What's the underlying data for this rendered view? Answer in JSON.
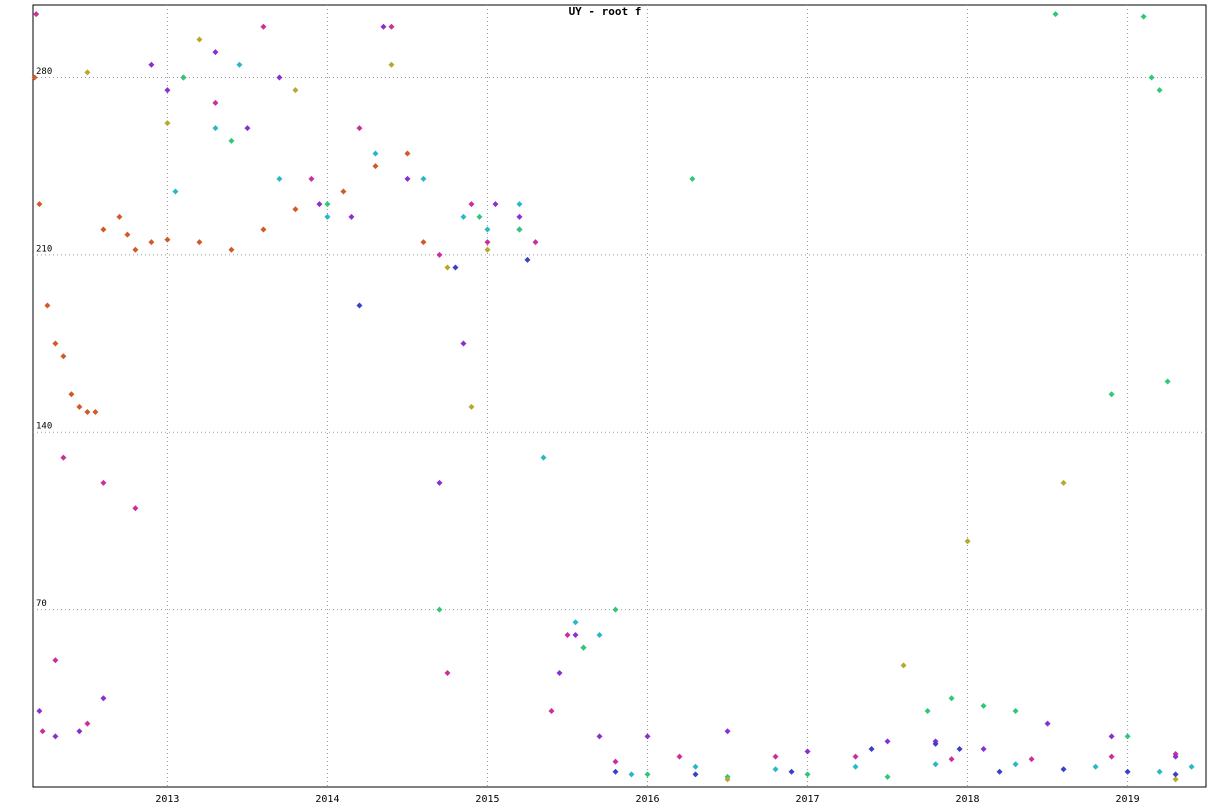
{
  "chart_data": {
    "type": "scatter",
    "title": "UY - root f",
    "xlim": [
      2012.16,
      2019.49
    ],
    "xticks": [
      2013,
      2014,
      2015,
      2016,
      2017,
      2018,
      2019
    ],
    "ylim": [
      0,
      308.6
    ],
    "yticks": [
      70,
      140,
      210,
      280
    ],
    "grid": true,
    "series": [
      {
        "color": "#d05a28",
        "x": [
          2012.17,
          2012.2,
          2012.25,
          2012.3,
          2012.35,
          2012.4,
          2012.45,
          2012.5,
          2012.55,
          2012.6,
          2012.7,
          2012.75,
          2012.8,
          2012.9,
          2013.0,
          2013.2,
          2013.4,
          2013.6,
          2013.8,
          2014.1,
          2014.3,
          2014.5,
          2014.6
        ],
        "values": [
          280,
          230,
          190,
          175,
          170,
          155,
          150,
          148,
          148,
          220,
          225,
          218,
          212,
          215,
          216,
          215,
          212,
          220,
          228,
          235,
          245,
          250,
          215
        ]
      },
      {
        "color": "#c8309a",
        "x": [
          2012.18,
          2012.22,
          2012.3,
          2012.35,
          2012.5,
          2012.6,
          2012.8,
          2013.1,
          2013.3,
          2013.6,
          2013.9,
          2014.2,
          2014.4,
          2014.7,
          2014.75,
          2014.9,
          2015.0,
          2015.2,
          2015.3,
          2015.4,
          2015.5,
          2015.6,
          2015.8,
          2016.2,
          2016.8,
          2017.3,
          2017.9,
          2018.4,
          2018.9,
          2019.3
        ],
        "values": [
          305,
          22,
          50,
          130,
          25,
          120,
          110,
          280,
          270,
          300,
          240,
          260,
          300,
          210,
          45,
          230,
          215,
          220,
          215,
          30,
          60,
          55,
          10,
          12,
          12,
          12,
          11,
          11,
          12,
          13
        ]
      },
      {
        "color": "#8a30d0",
        "x": [
          2012.2,
          2012.3,
          2012.45,
          2012.6,
          2012.9,
          2013.0,
          2013.3,
          2013.5,
          2013.7,
          2013.95,
          2014.15,
          2014.35,
          2014.5,
          2014.7,
          2014.85,
          2015.05,
          2015.2,
          2015.45,
          2015.55,
          2015.7,
          2016.0,
          2016.5,
          2017.0,
          2017.5,
          2017.8,
          2018.1,
          2018.5,
          2018.9,
          2019.3
        ],
        "values": [
          30,
          20,
          22,
          35,
          285,
          275,
          290,
          260,
          280,
          230,
          225,
          300,
          240,
          120,
          175,
          230,
          225,
          45,
          60,
          20,
          20,
          22,
          14,
          18,
          18,
          15,
          25,
          20,
          12
        ]
      },
      {
        "color": "#28b8c8",
        "x": [
          2013.05,
          2013.3,
          2013.45,
          2013.7,
          2014.0,
          2014.3,
          2014.6,
          2014.85,
          2015.0,
          2015.2,
          2015.35,
          2015.55,
          2015.7,
          2015.9,
          2016.3,
          2016.8,
          2017.3,
          2017.8,
          2018.3,
          2018.8,
          2019.2,
          2019.4
        ],
        "values": [
          235,
          260,
          285,
          240,
          225,
          250,
          240,
          225,
          220,
          230,
          130,
          65,
          60,
          5,
          8,
          7,
          8,
          9,
          9,
          8,
          6,
          8
        ]
      },
      {
        "color": "#30c878",
        "x": [
          2013.1,
          2013.4,
          2014.0,
          2014.7,
          2014.95,
          2015.2,
          2015.6,
          2015.8,
          2016.0,
          2016.28,
          2016.5,
          2017.0,
          2017.5,
          2017.75,
          2017.9,
          2018.1,
          2018.3,
          2018.55,
          2018.9,
          2019.0,
          2019.1,
          2019.15,
          2019.2,
          2019.25
        ],
        "values": [
          280,
          255,
          230,
          70,
          225,
          220,
          55,
          70,
          5,
          240,
          4,
          5,
          4,
          30,
          35,
          32,
          30,
          305,
          155,
          20,
          304,
          280,
          275,
          160
        ]
      },
      {
        "color": "#b8a830",
        "x": [
          2012.5,
          2013.0,
          2013.2,
          2013.8,
          2014.4,
          2014.75,
          2014.9,
          2015.0,
          2016.5,
          2017.6,
          2018.0,
          2018.6,
          2019.3
        ],
        "values": [
          282,
          262,
          295,
          275,
          285,
          205,
          150,
          212,
          3,
          48,
          97,
          120,
          3
        ]
      },
      {
        "color": "#3a40c8",
        "x": [
          2014.2,
          2014.8,
          2015.25,
          2015.8,
          2016.3,
          2016.9,
          2017.4,
          2017.8,
          2017.95,
          2018.2,
          2018.6,
          2019.0,
          2019.3
        ],
        "values": [
          190,
          205,
          208,
          6,
          5,
          6,
          15,
          17,
          15,
          6,
          7,
          6,
          5
        ]
      }
    ]
  }
}
